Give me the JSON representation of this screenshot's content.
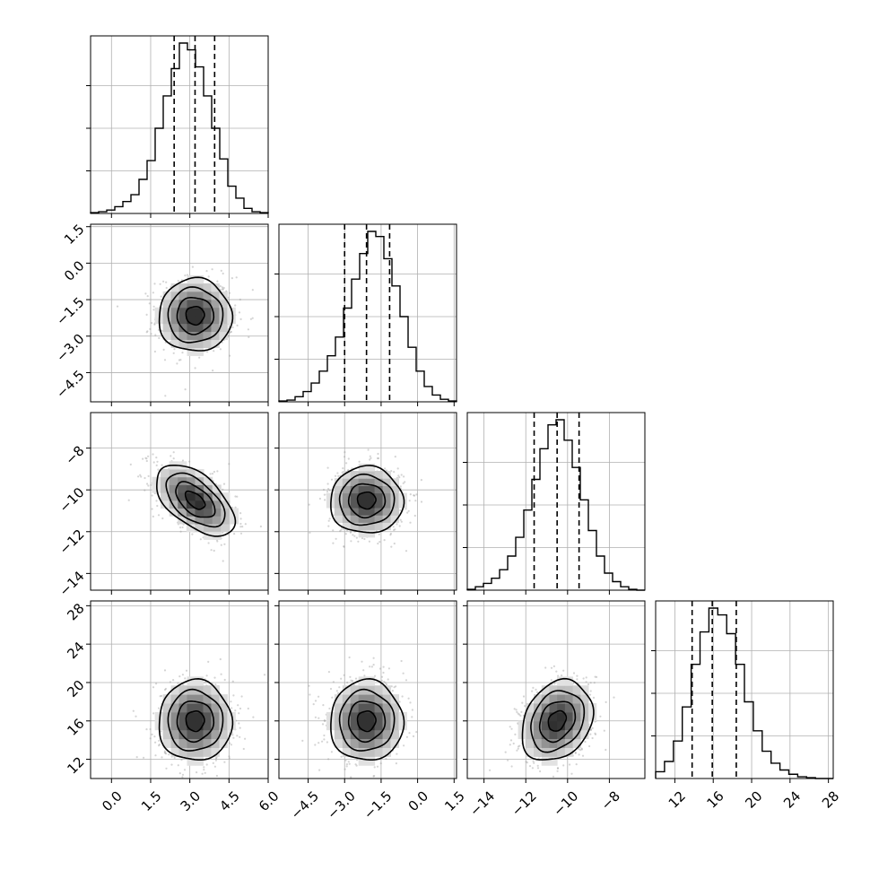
{
  "chart_data": {
    "type": "corner",
    "grid": true,
    "variables": [
      {
        "range": [
          -0.8,
          6.0
        ],
        "ticks": [
          0.0,
          1.5,
          3.0,
          4.5,
          6.0
        ],
        "tick_labels": [
          "0.0",
          "1.5",
          "3.0",
          "4.5",
          "6.0"
        ],
        "quantiles": [
          2.4,
          3.2,
          3.95
        ],
        "hist": [
          0.005,
          0.01,
          0.02,
          0.04,
          0.07,
          0.11,
          0.2,
          0.31,
          0.5,
          0.69,
          0.85,
          1.0,
          0.96,
          0.86,
          0.69,
          0.5,
          0.32,
          0.16,
          0.09,
          0.03,
          0.01,
          0.005
        ]
      },
      {
        "range": [
          -5.7,
          1.6
        ],
        "ticks": [
          -4.5,
          -3.0,
          -1.5,
          0.0,
          1.5
        ],
        "tick_labels": [
          "−4.5",
          "−3.0",
          "−1.5",
          "0.0",
          "1.5"
        ],
        "quantiles": [
          -3.0,
          -2.1,
          -1.15
        ],
        "hist": [
          0.005,
          0.01,
          0.03,
          0.06,
          0.11,
          0.18,
          0.27,
          0.38,
          0.55,
          0.72,
          0.87,
          1.0,
          0.97,
          0.84,
          0.68,
          0.5,
          0.32,
          0.18,
          0.09,
          0.04,
          0.015,
          0.005
        ]
      },
      {
        "range": [
          -14.8,
          -6.3
        ],
        "ticks": [
          -14,
          -12,
          -10,
          -8
        ],
        "tick_labels": [
          "−14",
          "−12",
          "−10",
          "−8"
        ],
        "quantiles": [
          -11.6,
          -10.5,
          -9.45
        ],
        "hist": [
          0.005,
          0.02,
          0.04,
          0.07,
          0.12,
          0.2,
          0.31,
          0.47,
          0.65,
          0.83,
          0.97,
          1.0,
          0.88,
          0.72,
          0.53,
          0.35,
          0.2,
          0.1,
          0.05,
          0.02,
          0.005,
          0.0
        ]
      },
      {
        "range": [
          10.0,
          28.5
        ],
        "ticks": [
          12,
          16,
          20,
          24,
          28
        ],
        "tick_labels": [
          "12",
          "16",
          "20",
          "24",
          "28"
        ],
        "quantiles": [
          13.8,
          15.9,
          18.4
        ],
        "hist": [
          0.04,
          0.1,
          0.22,
          0.42,
          0.67,
          0.86,
          1.0,
          0.96,
          0.85,
          0.67,
          0.45,
          0.28,
          0.16,
          0.09,
          0.05,
          0.025,
          0.01,
          0.005,
          0.0,
          0.0
        ]
      }
    ],
    "pairs": [
      {
        "row": 1,
        "col": 0,
        "center": [
          3.2,
          -2.15
        ],
        "sd": [
          0.7,
          0.75
        ],
        "corr": 0.0
      },
      {
        "row": 2,
        "col": 0,
        "center": [
          3.2,
          -10.5
        ],
        "sd": [
          0.75,
          0.85
        ],
        "corr": -0.55
      },
      {
        "row": 2,
        "col": 1,
        "center": [
          -2.1,
          -10.5
        ],
        "sd": [
          0.75,
          0.8
        ],
        "corr": 0.0
      },
      {
        "row": 3,
        "col": 0,
        "center": [
          3.2,
          16.0
        ],
        "sd": [
          0.7,
          2.1
        ],
        "corr": 0.0
      },
      {
        "row": 3,
        "col": 1,
        "center": [
          -2.1,
          16.0
        ],
        "sd": [
          0.75,
          2.1
        ],
        "corr": 0.0
      },
      {
        "row": 3,
        "col": 2,
        "center": [
          -10.5,
          16.0
        ],
        "sd": [
          0.85,
          2.1
        ],
        "corr": 0.25
      }
    ],
    "contour_levels_sigma": [
      0.5,
      1.0,
      1.5,
      2.0
    ],
    "colors": {
      "line": "#000000",
      "grid": "#b0b0b0",
      "points": "#a0a0a0",
      "hist2d_max": "#262626"
    }
  }
}
